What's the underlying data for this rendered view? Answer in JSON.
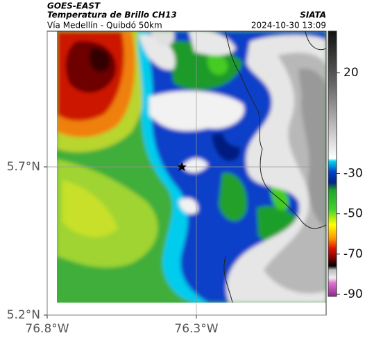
{
  "header": {
    "title": "GOES-EAST",
    "subtitle": "Temperatura de Brillo CH13",
    "region": "Vía Medellín - Quibdó 50km",
    "source": "SIATA",
    "timestamp": "2024-10-30 13:09"
  },
  "map": {
    "xlim": [
      -76.8,
      -75.865
    ],
    "ylim": [
      5.2,
      6.158
    ],
    "xticks": [
      {
        "value": -76.8,
        "label": "76.8°W"
      },
      {
        "value": -76.3,
        "label": "76.3°W"
      }
    ],
    "yticks": [
      {
        "value": 5.2,
        "label": "5.2°N"
      },
      {
        "value": 5.7,
        "label": "5.7°N"
      }
    ]
  },
  "colorbar": {
    "clim": [
      -91,
      40.6
    ],
    "ticks": [
      20,
      -30,
      -50,
      -70,
      -90
    ]
  }
}
